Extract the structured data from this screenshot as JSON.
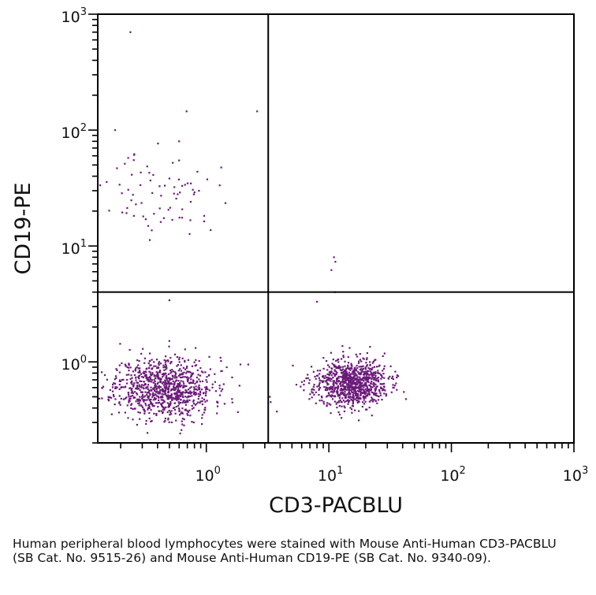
{
  "chart_data": {
    "type": "scatter",
    "title": "",
    "xlabel": "CD3-PACBLU",
    "ylabel": "CD19-PE",
    "xscale": "log",
    "yscale": "log",
    "xlim": [
      0.13,
      1000
    ],
    "ylim": [
      0.2,
      1000
    ],
    "x_ticks": [
      {
        "base": "10",
        "exp": "0",
        "value": 1
      },
      {
        "base": "10",
        "exp": "1",
        "value": 10
      },
      {
        "base": "10",
        "exp": "2",
        "value": 100
      },
      {
        "base": "10",
        "exp": "3",
        "value": 1000
      }
    ],
    "y_ticks": [
      {
        "base": "10",
        "exp": "0",
        "value": 1
      },
      {
        "base": "10",
        "exp": "1",
        "value": 10
      },
      {
        "base": "10",
        "exp": "2",
        "value": 100
      },
      {
        "base": "10",
        "exp": "3",
        "value": 1000
      }
    ],
    "quadrant_gates": {
      "x": 3.2,
      "y": 4.0
    },
    "grid": false,
    "point_color": "#6b1a7a",
    "series": [
      {
        "populations": [
          {
            "cx": 0.45,
            "cy": 0.6,
            "log_sx": 0.2,
            "log_sy": 0.13,
            "count": 950,
            "seed": 11
          },
          {
            "cx": 15,
            "cy": 0.65,
            "log_sx": 0.15,
            "log_sy": 0.1,
            "count": 900,
            "seed": 23
          },
          {
            "cx": 0.45,
            "cy": 28,
            "log_sx": 0.22,
            "log_sy": 0.18,
            "count": 75,
            "seed": 37
          }
        ],
        "points": [
          [
            0.24,
            700
          ],
          [
            0.69,
            145
          ],
          [
            2.6,
            145
          ],
          [
            0.18,
            100
          ],
          [
            0.6,
            80
          ],
          [
            11,
            8
          ],
          [
            11.3,
            7.3
          ],
          [
            10.5,
            6.2
          ],
          [
            11.2,
            4.0
          ],
          [
            8,
            3.3
          ],
          [
            0.5,
            3.4
          ],
          [
            1.9,
            0.95
          ],
          [
            2.2,
            0.95
          ],
          [
            3.3,
            0.5
          ],
          [
            3.35,
            0.45
          ]
        ]
      }
    ]
  },
  "caption": "Human peripheral blood lymphocytes were stained with Mouse Anti-Human CD3-PACBLU (SB Cat. No. 9515-26) and Mouse Anti-Human CD19-PE (SB Cat. No. 9340-09)."
}
